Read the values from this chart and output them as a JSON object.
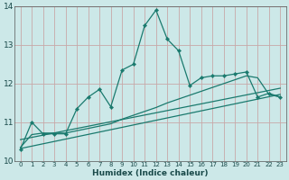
{
  "xlabel": "Humidex (Indice chaleur)",
  "bg_color": "#cce8e8",
  "grid_color": "#c8a8a8",
  "line_color": "#1a7a6e",
  "xlim": [
    -0.5,
    23.5
  ],
  "ylim": [
    10,
    14
  ],
  "yticks": [
    10,
    11,
    12,
    13,
    14
  ],
  "xticks": [
    0,
    1,
    2,
    3,
    4,
    5,
    6,
    7,
    8,
    9,
    10,
    11,
    12,
    13,
    14,
    15,
    16,
    17,
    18,
    19,
    20,
    21,
    22,
    23
  ],
  "series1_x": [
    0,
    1,
    2,
    3,
    4,
    5,
    6,
    7,
    8,
    9,
    10,
    11,
    12,
    13,
    14,
    15,
    16,
    17,
    18,
    19,
    20,
    21,
    22,
    23
  ],
  "series1_y": [
    10.3,
    11.0,
    10.7,
    10.7,
    10.7,
    11.35,
    11.65,
    11.85,
    11.4,
    12.35,
    12.5,
    13.5,
    13.9,
    13.15,
    12.85,
    11.95,
    12.15,
    12.2,
    12.2,
    12.25,
    12.3,
    11.65,
    11.75,
    11.65
  ],
  "series2_x": [
    0,
    1,
    2,
    3,
    4,
    5,
    6,
    7,
    8,
    9,
    10,
    11,
    12,
    13,
    14,
    15,
    16,
    17,
    18,
    19,
    20,
    21,
    22,
    23
  ],
  "series2_y": [
    10.35,
    10.68,
    10.72,
    10.72,
    10.72,
    10.78,
    10.84,
    10.9,
    10.96,
    11.08,
    11.18,
    11.28,
    11.38,
    11.5,
    11.6,
    11.7,
    11.8,
    11.9,
    12.0,
    12.1,
    12.2,
    12.15,
    11.72,
    11.65
  ],
  "line3_x0": 0,
  "line3_x1": 23,
  "line3_y0": 10.32,
  "line3_y1": 11.72,
  "line4_x0": 0,
  "line4_x1": 23,
  "line4_y0": 10.55,
  "line4_y1": 11.88
}
